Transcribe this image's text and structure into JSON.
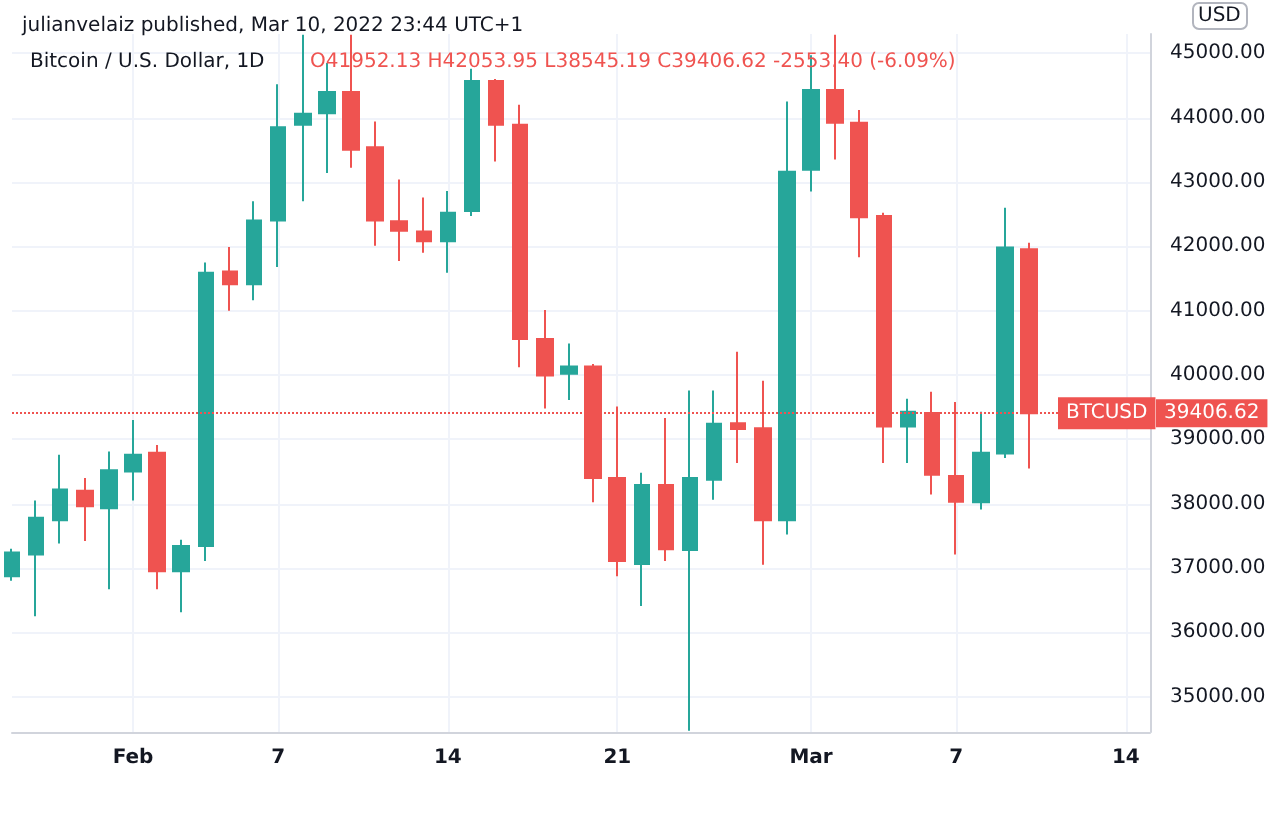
{
  "chart_data": {
    "type": "candlestick",
    "title": "Bitcoin / U.S. Dollar, 1D",
    "subtitle": "O41952.13 H42053.95 L38545.19 C39406.62 -2553.40 (-6.09%)",
    "ylabel": "USD",
    "annotations": [
      "julianvelaiz published, Mar 10, 2022 23:44 UTC+1",
      "39406.62"
    ],
    "x": [
      "2022-01-27",
      "2022-01-28",
      "2022-01-29",
      "2022-01-30",
      "2022-01-31",
      "2022-02-01",
      "2022-02-02",
      "2022-02-03",
      "2022-02-04",
      "2022-02-05",
      "2022-02-06",
      "2022-02-07",
      "2022-02-08",
      "2022-02-09",
      "2022-02-10",
      "2022-02-11",
      "2022-02-12",
      "2022-02-13",
      "2022-02-14",
      "2022-02-15",
      "2022-02-16",
      "2022-02-17",
      "2022-02-18",
      "2022-02-19",
      "2022-02-20",
      "2022-02-21",
      "2022-02-22",
      "2022-02-23",
      "2022-02-24",
      "2022-02-25",
      "2022-02-26",
      "2022-02-27",
      "2022-02-28",
      "2022-03-01",
      "2022-03-02",
      "2022-03-03",
      "2022-03-04",
      "2022-03-05",
      "2022-03-06",
      "2022-03-07",
      "2022-03-08",
      "2022-03-09",
      "2022-03-10"
    ],
    "ohlc": [
      [
        36870,
        37300,
        36800,
        37240
      ],
      [
        37210,
        38050,
        36250,
        37780
      ],
      [
        37740,
        38760,
        37380,
        38220
      ],
      [
        38200,
        38400,
        37420,
        37960
      ],
      [
        37930,
        38810,
        36670,
        38520
      ],
      [
        38500,
        39300,
        38050,
        38760
      ],
      [
        38790,
        38910,
        36670,
        36950
      ],
      [
        36950,
        37440,
        36310,
        37340
      ],
      [
        37340,
        41750,
        37110,
        41590
      ],
      [
        41610,
        41990,
        41000,
        41410
      ],
      [
        41410,
        42700,
        41160,
        42400
      ],
      [
        42400,
        44520,
        41680,
        43850
      ],
      [
        43890,
        45290,
        42700,
        44060
      ],
      [
        44070,
        44850,
        43140,
        44400
      ],
      [
        44400,
        45290,
        43220,
        43500
      ],
      [
        43540,
        43940,
        42010,
        42400
      ],
      [
        42390,
        43040,
        41770,
        42240
      ],
      [
        42230,
        42760,
        41900,
        42080
      ],
      [
        42080,
        42860,
        41590,
        42520
      ],
      [
        42550,
        44760,
        42470,
        44570
      ],
      [
        44570,
        44600,
        43320,
        43890
      ],
      [
        43890,
        44200,
        40120,
        40560
      ],
      [
        40560,
        41010,
        39480,
        39990
      ],
      [
        40020,
        40490,
        39610,
        40130
      ],
      [
        40130,
        40170,
        38020,
        38400
      ],
      [
        38400,
        39510,
        36870,
        37110
      ],
      [
        37060,
        38480,
        36410,
        38290
      ],
      [
        38290,
        39330,
        37110,
        37290
      ],
      [
        37280,
        39760,
        34470,
        38400
      ],
      [
        38370,
        39760,
        38060,
        39240
      ],
      [
        39250,
        40360,
        38630,
        39160
      ],
      [
        39170,
        39910,
        37050,
        37740
      ],
      [
        37740,
        44250,
        37520,
        43160
      ],
      [
        43190,
        44970,
        42850,
        44430
      ],
      [
        44430,
        45290,
        43350,
        43920
      ],
      [
        43920,
        44120,
        41830,
        42450
      ],
      [
        42470,
        42520,
        38630,
        39200
      ],
      [
        39200,
        39630,
        38630,
        39430
      ],
      [
        39410,
        39740,
        38140,
        38450
      ],
      [
        38430,
        39580,
        37210,
        38030
      ],
      [
        38020,
        39430,
        37910,
        38790
      ],
      [
        38780,
        42600,
        38710,
        41980
      ],
      [
        41952.13,
        42053.95,
        38545.19,
        39406.62
      ]
    ],
    "colors": [
      "#26a69a",
      "#26a69a",
      "#26a69a",
      "#ef5350",
      "#26a69a",
      "#26a69a",
      "#ef5350",
      "#26a69a",
      "#26a69a",
      "#ef5350",
      "#26a69a",
      "#26a69a",
      "#26a69a",
      "#26a69a",
      "#ef5350",
      "#ef5350",
      "#ef5350",
      "#ef5350",
      "#26a69a",
      "#26a69a",
      "#ef5350",
      "#ef5350",
      "#ef5350",
      "#26a69a",
      "#ef5350",
      "#ef5350",
      "#26a69a",
      "#ef5350",
      "#26a69a",
      "#26a69a",
      "#ef5350",
      "#ef5350",
      "#26a69a",
      "#26a69a",
      "#ef5350",
      "#ef5350",
      "#ef5350",
      "#26a69a",
      "#ef5350",
      "#ef5350",
      "#26a69a",
      "#26a69a",
      "#ef5350"
    ],
    "xlim": [
      "2022-01-27",
      "2022-03-15"
    ],
    "xticks": [
      {
        "value": "2022-02-01",
        "label": "Feb"
      },
      {
        "value": "2022-02-07",
        "label": "7"
      },
      {
        "value": "2022-02-14",
        "label": "14"
      },
      {
        "value": "2022-02-21",
        "label": "21"
      },
      {
        "value": "2022-03-01",
        "label": "Mar"
      },
      {
        "value": "2022-03-07",
        "label": "7"
      },
      {
        "value": "2022-03-14",
        "label": "14"
      }
    ],
    "ylim": [
      34450,
      45300
    ],
    "yticks": [
      {
        "value": 35000,
        "label": "35000.00"
      },
      {
        "value": 36000,
        "label": "36000.00"
      },
      {
        "value": 37000,
        "label": "37000.00"
      },
      {
        "value": 38000,
        "label": "38000.00"
      },
      {
        "value": 39000,
        "label": "39000.00"
      },
      {
        "value": 40000,
        "label": "40000.00"
      },
      {
        "value": 41000,
        "label": "41000.00"
      },
      {
        "value": 42000,
        "label": "42000.00"
      },
      {
        "value": 43000,
        "label": "43000.00"
      },
      {
        "value": 44000,
        "label": "44000.00"
      },
      {
        "value": 45000,
        "label": "45000.00"
      }
    ],
    "ref_lines": [
      {
        "axis": "y",
        "value": 39406.62,
        "label": "BTCUSD",
        "color": "#ef5350",
        "line_style": "dotted"
      }
    ],
    "grid": true
  }
}
